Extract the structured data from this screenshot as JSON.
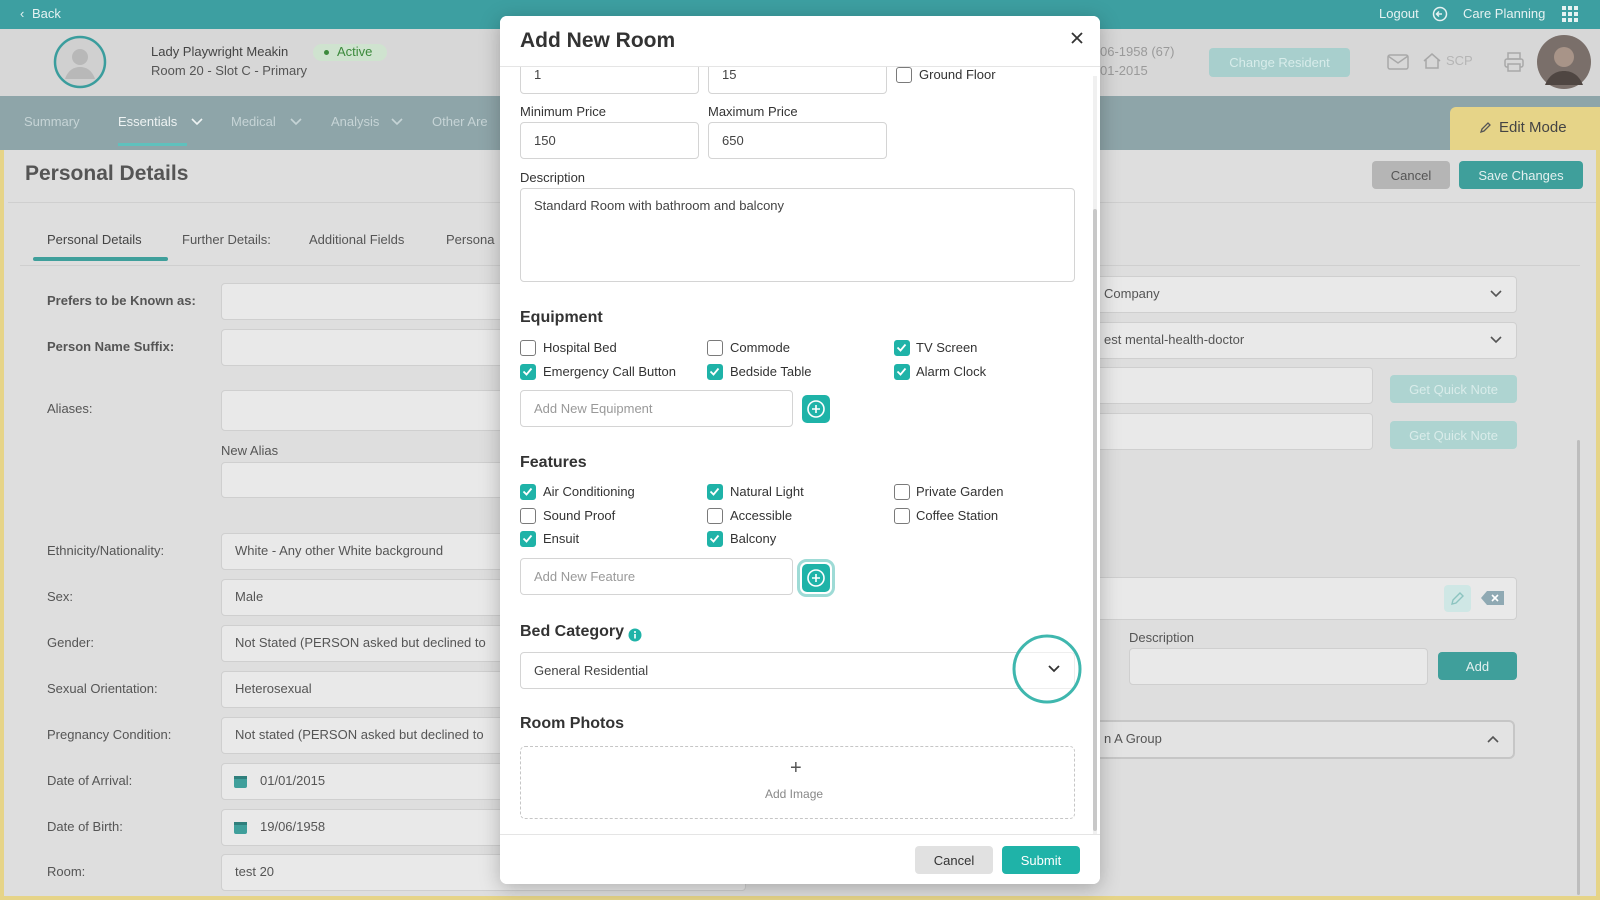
{
  "topbar": {
    "back": "Back",
    "logout": "Logout",
    "app": "Care Planning"
  },
  "resident": {
    "name": "Lady Playwright Meakin",
    "status": "Active",
    "room": "Room 20 - Slot C - Primary",
    "dob": "06-1958 (67)",
    "arrival": "01-2015",
    "change_button": "Change Resident",
    "scp": "SCP"
  },
  "nav": {
    "items": [
      "Summary",
      "Essentials",
      "Medical",
      "Analysis",
      "Other Are"
    ],
    "edit_mode": "Edit Mode"
  },
  "section": {
    "title": "Personal Details",
    "cancel": "Cancel",
    "save": "Save Changes",
    "tabs": [
      "Personal Details",
      "Further Details:",
      "Additional Fields",
      "Persona"
    ]
  },
  "form": {
    "fields": [
      {
        "label": "Prefers to be Known as:"
      },
      {
        "label": "Person Name Suffix:"
      },
      {
        "label": "Aliases:"
      },
      {
        "label": "Ethnicity/Nationality:",
        "value": "White - Any other White background"
      },
      {
        "label": "Sex:",
        "value": "Male"
      },
      {
        "label": "Gender:",
        "value": "Not Stated (PERSON asked but declined to"
      },
      {
        "label": "Sexual Orientation:",
        "value": "Heterosexual"
      },
      {
        "label": "Pregnancy Condition:",
        "value": "Not stated (PERSON asked but declined to"
      },
      {
        "label": "Date of Arrival:",
        "value": "01/01/2015"
      },
      {
        "label": "Date of Birth:",
        "value": "19/06/1958"
      },
      {
        "label": "Room:",
        "value": "test 20"
      }
    ],
    "new_alias": "New Alias"
  },
  "right_panel": {
    "company": "Company",
    "doctor": "est mental-health-doctor",
    "quick_note": [
      "Get Quick Note",
      "Get Quick Note"
    ],
    "description": "Description",
    "add": "Add",
    "group": "n A Group"
  },
  "modal": {
    "title": "Add New Room",
    "floor_inputs": [
      1,
      15
    ],
    "ground_floor": {
      "label": "Ground Floor",
      "checked": false
    },
    "min_price": {
      "label": "Minimum Price",
      "value": 150
    },
    "max_price": {
      "label": "Maximum Price",
      "value": 650
    },
    "description": {
      "label": "Description",
      "value": "Standard Room with bathroom and balcony"
    },
    "equipment": {
      "heading": "Equipment",
      "items": [
        {
          "label": "Hospital Bed",
          "checked": false
        },
        {
          "label": "Commode",
          "checked": false
        },
        {
          "label": "TV Screen",
          "checked": true
        },
        {
          "label": "Emergency Call Button",
          "checked": true
        },
        {
          "label": "Bedside Table",
          "checked": true
        },
        {
          "label": "Alarm Clock",
          "checked": true
        }
      ],
      "placeholder": "Add New Equipment"
    },
    "features": {
      "heading": "Features",
      "items": [
        {
          "label": "Air Conditioning",
          "checked": true
        },
        {
          "label": "Natural Light",
          "checked": true
        },
        {
          "label": "Private Garden",
          "checked": false
        },
        {
          "label": "Sound Proof",
          "checked": false
        },
        {
          "label": "Accessible",
          "checked": false
        },
        {
          "label": "Coffee Station",
          "checked": false
        },
        {
          "label": "Ensuit",
          "checked": true
        },
        {
          "label": "Balcony",
          "checked": true
        }
      ],
      "placeholder": "Add New Feature"
    },
    "bed_category": {
      "heading": "Bed Category",
      "value": "General Residential"
    },
    "room_photos": {
      "heading": "Room Photos",
      "plus": "+",
      "add_image": "Add Image"
    },
    "cancel": "Cancel",
    "submit": "Submit"
  }
}
